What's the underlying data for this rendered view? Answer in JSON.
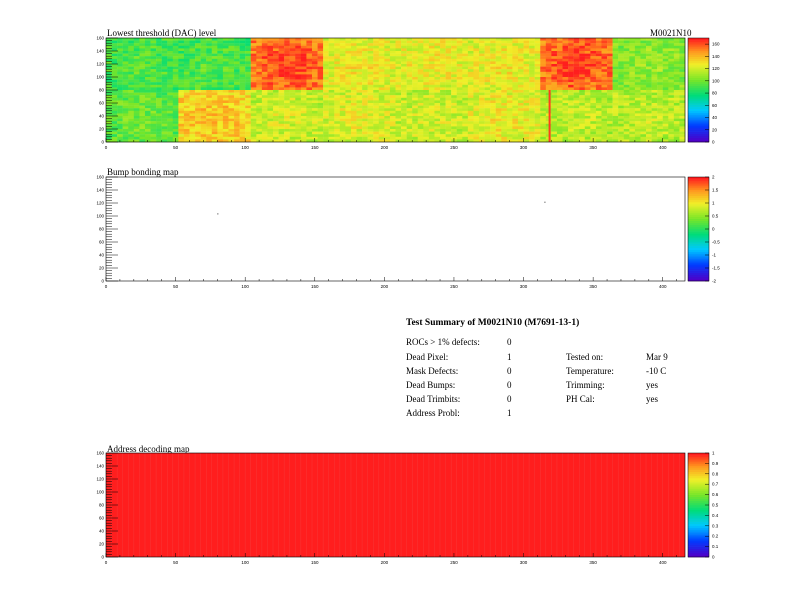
{
  "module_id": "M0021N10",
  "colors": {
    "frame": "#000000",
    "background": "#ffffff"
  },
  "panels": [
    {
      "title": "Lowest threshold (DAC) level",
      "chart_data": {
        "type": "heatmap",
        "title": "Lowest threshold (DAC) level",
        "xlim": [
          0,
          416
        ],
        "ylim": [
          0,
          160
        ],
        "x_ticks": [
          0,
          50,
          100,
          150,
          200,
          250,
          300,
          350,
          400
        ],
        "y_ticks": [
          0,
          20,
          40,
          60,
          80,
          100,
          120,
          140,
          160
        ],
        "z_range": [
          0,
          170
        ],
        "z_ticks": [
          0,
          20,
          40,
          60,
          80,
          100,
          120,
          140,
          160
        ],
        "roc_rows": [
          {
            "y_range": [
              80,
              160
            ],
            "roc_mean_levels": [
              0.52,
              0.52,
              0.88,
              0.72,
              0.72,
              0.72,
              0.88,
              0.6
            ]
          },
          {
            "y_range": [
              0,
              80
            ],
            "roc_mean_levels": [
              0.55,
              0.78,
              0.68,
              0.7,
              0.68,
              0.72,
              0.66,
              0.66
            ]
          }
        ]
      }
    },
    {
      "title": "Bump bonding map",
      "chart_data": {
        "type": "heatmap",
        "title": "Bump bonding map",
        "xlim": [
          0,
          416
        ],
        "ylim": [
          0,
          160
        ],
        "x_ticks": [
          0,
          50,
          100,
          150,
          200,
          250,
          300,
          350,
          400
        ],
        "y_ticks": [
          0,
          20,
          40,
          60,
          80,
          100,
          120,
          140,
          160
        ],
        "z_range": [
          -2,
          2
        ],
        "z_ticks": [
          -2,
          -1.5,
          -1,
          -0.5,
          0,
          0.5,
          1,
          1.5,
          2
        ],
        "points": [
          {
            "x": 80,
            "y": 104
          },
          {
            "x": 315,
            "y": 122
          }
        ]
      }
    },
    {
      "title": "Address decoding map",
      "chart_data": {
        "type": "heatmap",
        "title": "Address decoding map",
        "xlim": [
          0,
          416
        ],
        "ylim": [
          0,
          160
        ],
        "x_ticks": [
          0,
          50,
          100,
          150,
          200,
          250,
          300,
          350,
          400
        ],
        "y_ticks": [
          0,
          20,
          40,
          60,
          80,
          100,
          120,
          140,
          160
        ],
        "z_range": [
          0,
          1
        ],
        "z_ticks": [
          0,
          0.1,
          0.2,
          0.3,
          0.4,
          0.5,
          0.6,
          0.7,
          0.8,
          0.9,
          1
        ],
        "uniform_value": 1
      }
    }
  ],
  "summary": {
    "heading": "Test Summary of M0021N10 (M7691-13-1)",
    "rocs_label": "ROCs > 1% defects:",
    "rocs_value": "0",
    "left_rows": [
      {
        "label": "Dead Pixel:",
        "value": "1"
      },
      {
        "label": "Mask Defects:",
        "value": "0"
      },
      {
        "label": "Dead Bumps:",
        "value": "0"
      },
      {
        "label": "Dead Trimbits:",
        "value": "0"
      },
      {
        "label": "Address Probl:",
        "value": "1"
      }
    ],
    "right_rows": [
      {
        "label": "Tested on:",
        "value": "Mar 9"
      },
      {
        "label": "Temperature:",
        "value": "-10 C"
      },
      {
        "label": "Trimming:",
        "value": "yes"
      },
      {
        "label": "PH Cal:",
        "value": "yes"
      }
    ]
  }
}
